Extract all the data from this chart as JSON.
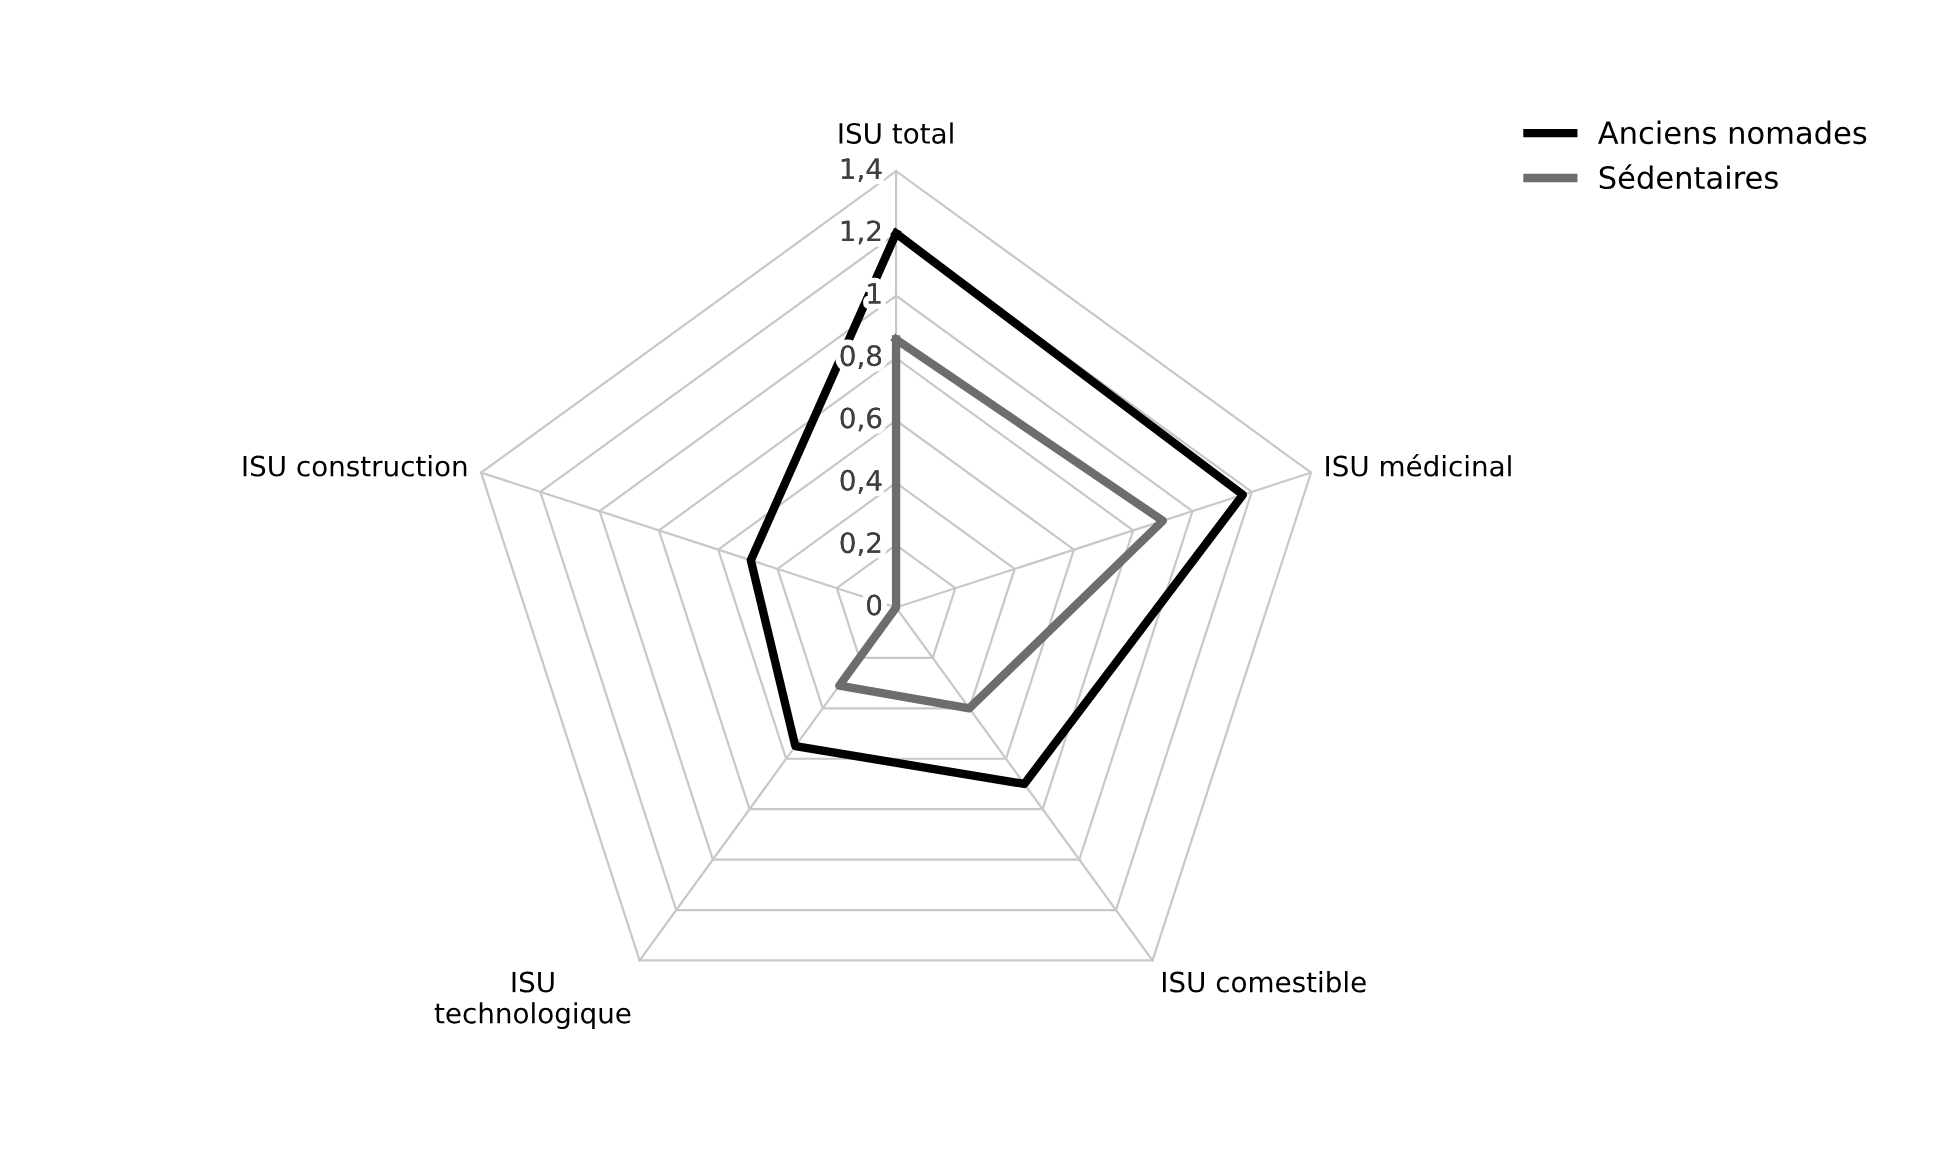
{
  "chart_data": {
    "type": "radar",
    "categories": [
      "ISU total",
      "ISU médicinal",
      "ISU comestible",
      "ISU\ntechnologique",
      "ISU construction"
    ],
    "ylim": [
      0,
      1.4
    ],
    "yticks": [
      {
        "value": 0,
        "label": "0"
      },
      {
        "value": 0.2,
        "label": "0,2"
      },
      {
        "value": 0.4,
        "label": "0,4"
      },
      {
        "value": 0.6,
        "label": "0,6"
      },
      {
        "value": 0.8,
        "label": "0,8"
      },
      {
        "value": 1,
        "label": "1"
      },
      {
        "value": 1.2,
        "label": "1,2"
      },
      {
        "value": 1.4,
        "label": "1,4"
      }
    ],
    "grid": true,
    "legend": "top right",
    "marker": "none",
    "line_style": "solid",
    "series": [
      {
        "name": "Anciens nomades",
        "color": "#000000",
        "values": [
          1.2,
          1.17,
          0.7,
          0.55,
          0.49
        ]
      },
      {
        "name": "Sédentaires",
        "color": "#6d6d6d",
        "values": [
          0.86,
          0.9,
          0.4,
          0.31,
          0
        ]
      }
    ]
  }
}
